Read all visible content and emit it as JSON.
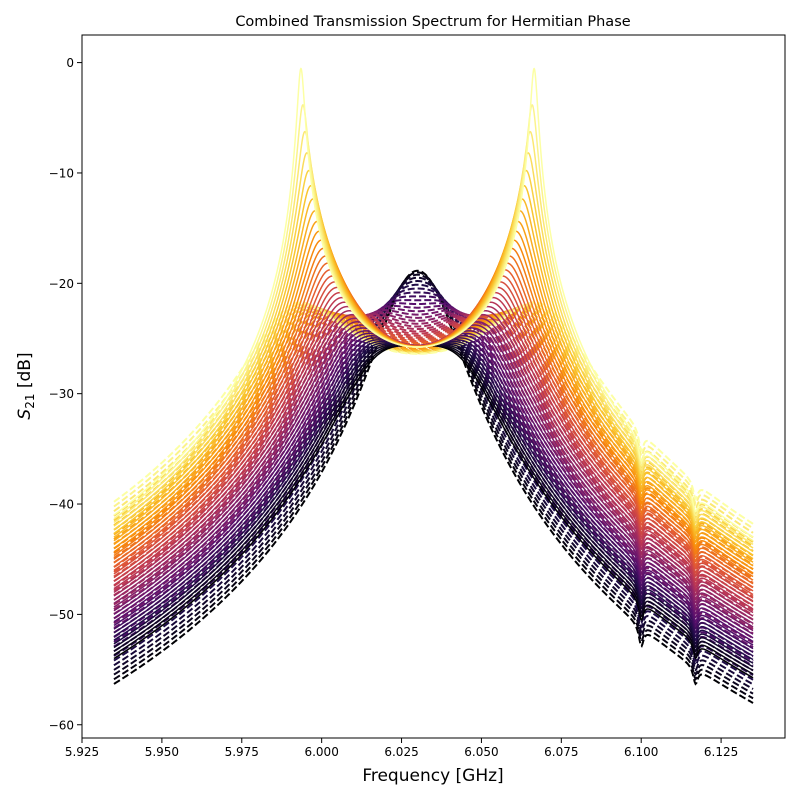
{
  "chart_data": {
    "type": "line",
    "title": "Combined Transmission Spectrum for Hermitian Phase",
    "xlabel": "Frequency [GHz]",
    "ylabel_main": "S",
    "ylabel_sub": "21",
    "ylabel_unit": " [dB]",
    "xlim": [
      5.925,
      6.145
    ],
    "ylim": [
      -61.2,
      2.5
    ],
    "x_ticks": [
      5.925,
      5.95,
      5.975,
      6.0,
      6.025,
      6.05,
      6.075,
      6.1,
      6.125
    ],
    "x_tick_labels": [
      "5.925",
      "5.950",
      "5.975",
      "6.000",
      "6.025",
      "6.050",
      "6.075",
      "6.100",
      "6.125"
    ],
    "y_ticks": [
      0,
      -10,
      -20,
      -30,
      -40,
      -50,
      -60
    ],
    "y_tick_labels": [
      "0",
      "−10",
      "−20",
      "−30",
      "−40",
      "−50",
      "−60"
    ],
    "grid": false,
    "legend": "none",
    "x_range": [
      5.935,
      6.135
    ],
    "colormap": "inferno",
    "series_count": 40,
    "series_styles": [
      "solid",
      "dashed"
    ],
    "dips_at": [
      6.1,
      6.117
    ],
    "series_example": [
      {
        "style": "solid",
        "peak_freqs": [
          5.9965,
          6.0695
        ],
        "peak_db": -0.5,
        "center_db": -26.5,
        "edge_db_left": -41,
        "edge_db_right": -42
      },
      {
        "style": "dashed",
        "peak_freqs": [
          6.03
        ],
        "peak_db": -28.5,
        "edge_db_left": -56,
        "edge_db_right": -58
      }
    ]
  }
}
